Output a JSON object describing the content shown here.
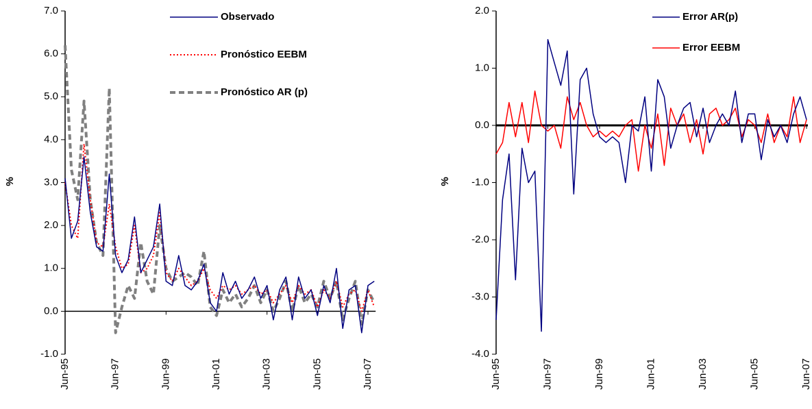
{
  "chart_data": [
    {
      "type": "line",
      "ylabel": "%",
      "categories": [
        "Jun-95",
        null,
        null,
        null,
        null,
        null,
        null,
        null,
        "Jun-97",
        null,
        null,
        null,
        null,
        null,
        null,
        null,
        "Jun-99",
        null,
        null,
        null,
        null,
        null,
        null,
        null,
        "Jun-01",
        null,
        null,
        null,
        null,
        null,
        null,
        null,
        "Jun-03",
        null,
        null,
        null,
        null,
        null,
        null,
        null,
        "Jun-05",
        null,
        null,
        null,
        null,
        null,
        null,
        null,
        "Jun-07",
        null
      ],
      "ylim": [
        -1,
        7
      ],
      "yticks": [
        {
          "value": -1,
          "label": "-1.0"
        },
        {
          "value": 0,
          "label": "0.0"
        },
        {
          "value": 1,
          "label": "1.0"
        },
        {
          "value": 2,
          "label": "2.0"
        },
        {
          "value": 3,
          "label": "3.0"
        },
        {
          "value": 4,
          "label": "4.0"
        },
        {
          "value": 5,
          "label": "5.0"
        },
        {
          "value": 6,
          "label": "6.0"
        },
        {
          "value": 7,
          "label": "7.0"
        }
      ],
      "series": [
        {
          "name": "Observado",
          "color": "#000080",
          "style": "solid",
          "values": [
            3.1,
            1.7,
            2.1,
            3.6,
            2.3,
            1.5,
            1.4,
            3.2,
            1.3,
            0.9,
            1.2,
            2.2,
            0.9,
            1.2,
            1.5,
            2.5,
            0.7,
            0.6,
            1.3,
            0.6,
            0.5,
            0.7,
            1.1,
            0.2,
            0.0,
            0.9,
            0.4,
            0.7,
            0.3,
            0.5,
            0.8,
            0.3,
            0.6,
            -0.2,
            0.5,
            0.8,
            -0.2,
            0.8,
            0.3,
            0.5,
            -0.1,
            0.6,
            0.2,
            1.0,
            -0.4,
            0.5,
            0.6,
            -0.5,
            0.6,
            0.7
          ]
        },
        {
          "name": "Pronóstico EEBM",
          "color": "#ff0000",
          "style": "dotted",
          "values": [
            3.0,
            2.0,
            1.7,
            3.9,
            2.6,
            1.6,
            1.5,
            2.5,
            1.5,
            1.0,
            1.1,
            2.0,
            0.9,
            1.0,
            1.3,
            2.3,
            0.9,
            0.7,
            1.0,
            0.8,
            0.6,
            0.7,
            1.0,
            0.5,
            0.3,
            0.6,
            0.5,
            0.6,
            0.4,
            0.5,
            0.6,
            0.4,
            0.5,
            0.2,
            0.4,
            0.6,
            0.2,
            0.6,
            0.4,
            0.5,
            0.1,
            0.5,
            0.3,
            0.7,
            0.1,
            0.4,
            0.5,
            0.0,
            0.5,
            0.1
          ]
        },
        {
          "name": "Pronóstico AR (p)",
          "color": "#808080",
          "style": "dashed",
          "values": [
            6.2,
            3.3,
            2.6,
            4.9,
            2.6,
            1.6,
            1.3,
            5.2,
            -0.5,
            0.1,
            0.6,
            0.3,
            1.6,
            0.7,
            0.4,
            2.0,
            1.0,
            0.7,
            0.8,
            0.9,
            0.8,
            0.6,
            1.4,
            0.1,
            -0.1,
            0.5,
            0.2,
            0.4,
            0.1,
            0.3,
            0.6,
            0.2,
            0.5,
            0.0,
            0.3,
            0.7,
            0.0,
            0.6,
            0.2,
            0.4,
            0.1,
            0.7,
            0.3,
            0.7,
            -0.2,
            0.3,
            0.7,
            -0.3,
            0.5,
            0.2
          ]
        }
      ]
    },
    {
      "type": "line",
      "ylabel": "%",
      "categories": [
        "Jun-95",
        null,
        null,
        null,
        null,
        null,
        null,
        null,
        "Jun-97",
        null,
        null,
        null,
        null,
        null,
        null,
        null,
        "Jun-99",
        null,
        null,
        null,
        null,
        null,
        null,
        null,
        "Jun-01",
        null,
        null,
        null,
        null,
        null,
        null,
        null,
        "Jun-03",
        null,
        null,
        null,
        null,
        null,
        null,
        null,
        "Jun-05",
        null,
        null,
        null,
        null,
        null,
        null,
        null,
        "Jun-07"
      ],
      "ylim": [
        -4,
        2
      ],
      "yticks": [
        {
          "value": -4,
          "label": "-4.0"
        },
        {
          "value": -3,
          "label": "-3.0"
        },
        {
          "value": -2,
          "label": "-2.0"
        },
        {
          "value": -1,
          "label": "-1.0"
        },
        {
          "value": 0,
          "label": "0.0"
        },
        {
          "value": 1,
          "label": "1.0"
        },
        {
          "value": 2,
          "label": "2.0"
        }
      ],
      "series": [
        {
          "name": "Error AR(p)",
          "color": "#000080",
          "style": "solid",
          "values": [
            -3.4,
            -1.3,
            -0.5,
            -2.7,
            -0.4,
            -1.0,
            -0.8,
            -3.6,
            1.5,
            1.1,
            0.7,
            1.3,
            -1.2,
            0.8,
            1.0,
            0.2,
            -0.2,
            -0.3,
            -0.2,
            -0.3,
            -1.0,
            0.0,
            -0.1,
            0.5,
            -0.8,
            0.8,
            0.5,
            -0.4,
            0.0,
            0.3,
            0.4,
            -0.2,
            0.3,
            -0.3,
            0.0,
            0.2,
            0.0,
            0.6,
            -0.3,
            0.2,
            0.2,
            -0.6,
            0.1,
            -0.2,
            0.0,
            -0.3,
            0.2,
            0.5,
            0.1
          ]
        },
        {
          "name": "Error EEBM",
          "color": "#ff0000",
          "style": "solid",
          "values": [
            -0.5,
            -0.3,
            0.4,
            -0.2,
            0.4,
            -0.3,
            0.6,
            0.0,
            -0.1,
            0.0,
            -0.4,
            0.5,
            0.1,
            0.4,
            0.0,
            -0.2,
            -0.1,
            -0.2,
            -0.1,
            -0.2,
            0.0,
            0.1,
            -0.8,
            0.0,
            -0.4,
            0.2,
            -0.7,
            0.3,
            0.0,
            0.2,
            -0.3,
            0.1,
            -0.5,
            0.2,
            0.3,
            0.0,
            0.1,
            0.3,
            -0.2,
            0.1,
            0.0,
            -0.3,
            0.2,
            -0.3,
            0.0,
            -0.2,
            0.5,
            -0.3,
            0.1
          ]
        }
      ]
    }
  ]
}
